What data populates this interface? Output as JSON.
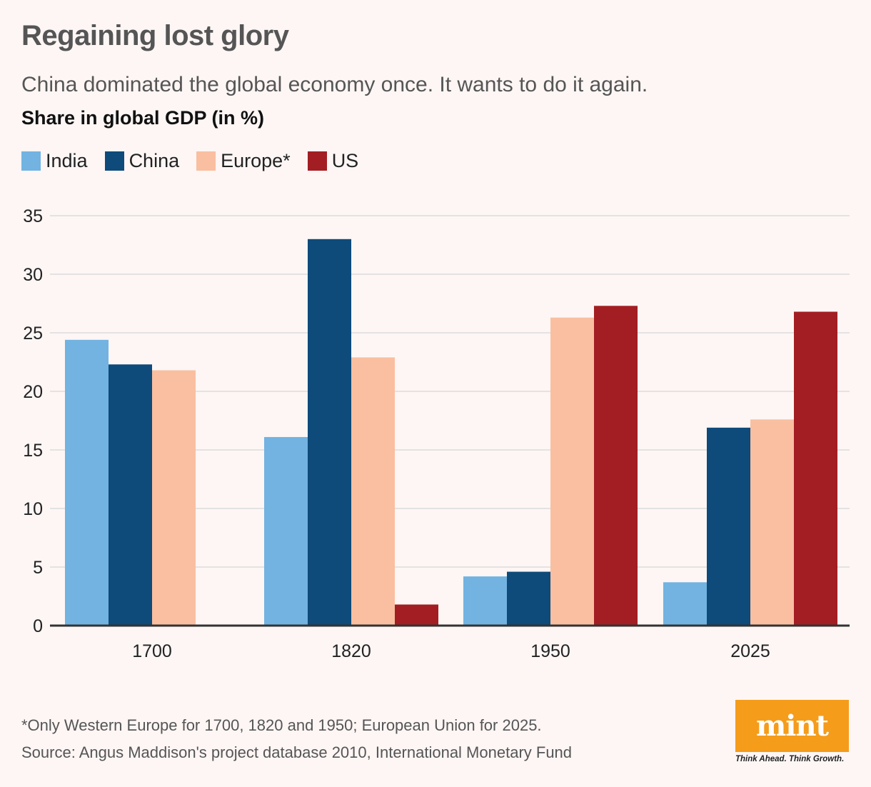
{
  "title": "Regaining lost glory",
  "subtitle": "China dominated the global economy once. It wants to do it again.",
  "footnote": "*Only Western Europe for 1700, 1820 and 1950; European Union for 2025.",
  "source": "Source: Angus Maddison's project database 2010, International Monetary Fund",
  "logo": {
    "text": "mint",
    "tagline": "Think Ahead. Think Growth."
  },
  "colors": {
    "background": "#fdf6f5",
    "India": "#72b3e2",
    "China": "#0e4a7a",
    "Europe": "#f9bfa0",
    "US": "#a31e22",
    "logo": "#f59c1b"
  },
  "chart_data": {
    "type": "bar",
    "ylabel": "Share in global GDP (in %)",
    "categories": [
      "1700",
      "1820",
      "1950",
      "2025"
    ],
    "ylim": [
      0,
      35
    ],
    "yticks": [
      0,
      5,
      10,
      15,
      20,
      25,
      30,
      35
    ],
    "grid": true,
    "legend_position": "top-left",
    "series": [
      {
        "name": "India",
        "color": "#72b3e2",
        "values": [
          24.4,
          16.1,
          4.2,
          3.7
        ]
      },
      {
        "name": "China",
        "color": "#0e4a7a",
        "values": [
          22.3,
          33.0,
          4.6,
          16.9
        ]
      },
      {
        "name": "Europe*",
        "color": "#f9bfa0",
        "values": [
          21.8,
          22.9,
          26.3,
          17.6
        ]
      },
      {
        "name": "US",
        "color": "#a31e22",
        "values": [
          null,
          1.8,
          27.3,
          26.8
        ]
      }
    ]
  }
}
